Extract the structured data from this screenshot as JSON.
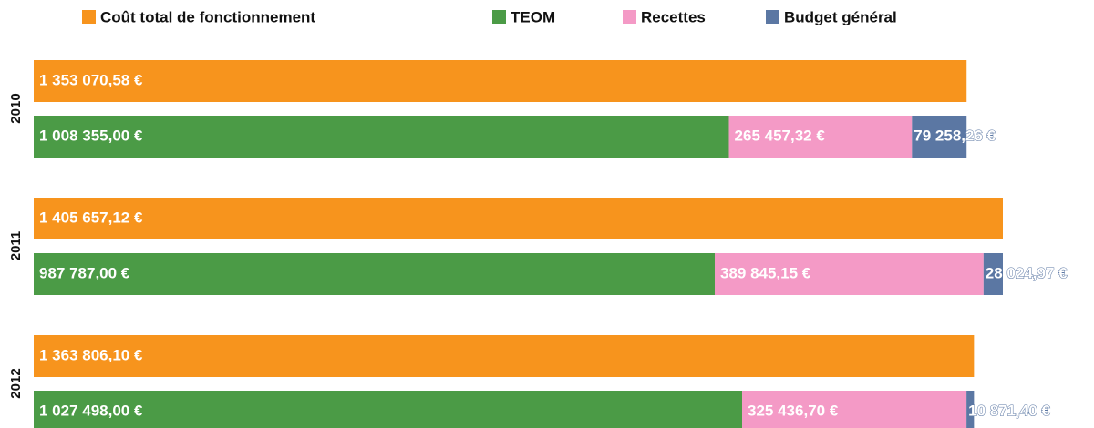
{
  "chart_data": {
    "type": "bar",
    "categories": [
      "2010",
      "2011",
      "2012"
    ],
    "series": [
      {
        "name": "Coût total de fonctionnement",
        "color": "#f7941d",
        "values": [
          1353070.58,
          1405657.12,
          1363806.1
        ],
        "value_labels": [
          "1 353 070,58 €",
          "1 405 657,12 €",
          "1 363 806,10 €"
        ]
      },
      {
        "name": "TEOM",
        "color": "#4b9b46",
        "values": [
          1008355.0,
          987787.0,
          1027498.0
        ],
        "value_labels": [
          "1 008 355,00 €",
          "987 787,00 €",
          "1 027 498,00 €"
        ]
      },
      {
        "name": "Recettes",
        "color": "#f49ac6",
        "values": [
          265457.32,
          389845.15,
          325436.7
        ],
        "value_labels": [
          "265 457,32 €",
          "389 845,15 €",
          "325 436,70 €"
        ]
      },
      {
        "name": "Budget général",
        "color": "#5b77a3",
        "values": [
          79258.26,
          28024.97,
          10871.4
        ],
        "value_labels": [
          "79 258,26 €",
          "28 024,97 €",
          "10 871,40 €"
        ]
      }
    ]
  }
}
